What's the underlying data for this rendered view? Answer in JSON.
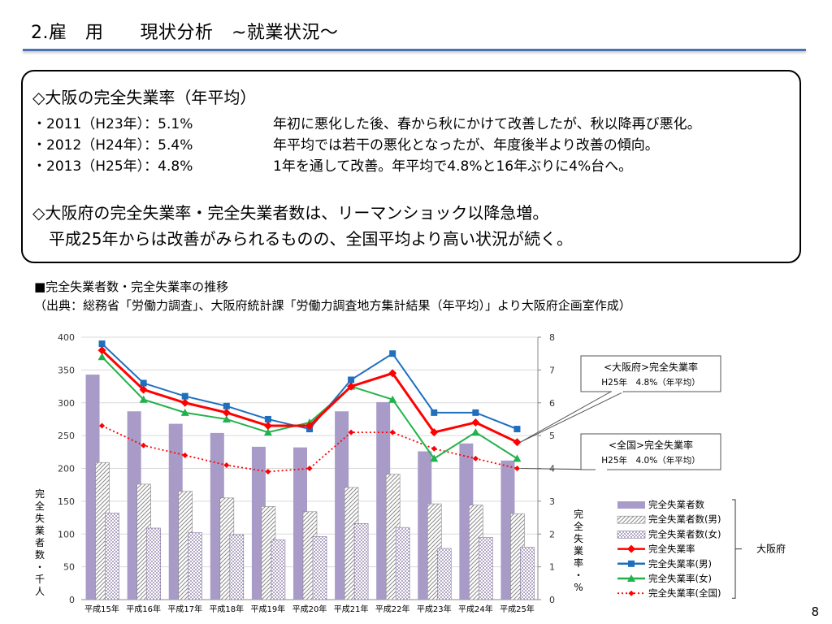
{
  "header": {
    "title": "2.雇　用　　現状分析　~就業状況～"
  },
  "summary": {
    "heading1": "◇大阪の完全失業率（年平均）",
    "bullets": [
      {
        "label": "・2011（H23年）：5.1%",
        "text": "年初に悪化した後、春から秋にかけて改善したが、秋以降再び悪化。"
      },
      {
        "label": "・2012（H24年）：5.4%",
        "text": "年平均では若干の悪化となったが、年度後半より改善の傾向。"
      },
      {
        "label": "・2013（H25年）：4.8%",
        "text": "1年を通して改善。年平均で4.8%と16年ぶりに4%台へ。"
      }
    ],
    "heading2_line1": "◇大阪府の完全失業率・完全失業者数は、リーマンショック以降急増。",
    "heading2_line2": "　平成25年からは改善がみられるものの、全国平均より高い状況が続く。"
  },
  "source": {
    "title": "■完全失業者数・完全失業率の推移",
    "citation": "（出典：総務省「労働力調査」、大阪府統計課「労働力調査地方集計結果（年平均）」より大阪府企画室作成）"
  },
  "page_number": "8",
  "chart_data": {
    "type": "bar",
    "categories": [
      "平成15年",
      "平成16年",
      "平成17年",
      "平成18年",
      "平成19年",
      "平成20年",
      "平成21年",
      "平成22年",
      "平成23年",
      "平成24年",
      "平成25年"
    ],
    "y_left": {
      "label": "完全失業者数・千人",
      "ticks": [
        0,
        50,
        100,
        150,
        200,
        250,
        300,
        350,
        400
      ],
      "ylim": [
        0,
        400
      ]
    },
    "y_right": {
      "label": "完全失業率・%",
      "ticks": [
        0,
        1,
        2,
        3,
        4,
        5,
        6,
        7,
        8
      ],
      "ylim": [
        0,
        8
      ]
    },
    "bar_series": [
      {
        "name": "完全失業者数",
        "values": [
          343,
          287,
          268,
          254,
          233,
          232,
          287,
          301,
          226,
          238,
          212
        ],
        "color": "#a99bc8",
        "pattern": "solid"
      },
      {
        "name": "完全失業者数(男)",
        "values": [
          209,
          176,
          165,
          155,
          142,
          134,
          171,
          191,
          146,
          144,
          131
        ],
        "color": "#8a8a8a",
        "pattern": "diagonal"
      },
      {
        "name": "完全失業者数(女)",
        "values": [
          132,
          109,
          102,
          99,
          91,
          96,
          116,
          110,
          78,
          95,
          80
        ],
        "color": "#8a7aa8",
        "pattern": "dots"
      }
    ],
    "line_series": [
      {
        "name": "完全失業率",
        "values": [
          7.6,
          6.4,
          6.0,
          5.7,
          5.3,
          5.3,
          6.5,
          6.9,
          5.1,
          5.4,
          4.8
        ],
        "color": "#ff0000",
        "marker": "diamond",
        "dash": "solid"
      },
      {
        "name": "完全失業率(男)",
        "values": [
          7.8,
          6.6,
          6.2,
          5.9,
          5.5,
          5.2,
          6.7,
          7.5,
          5.7,
          5.7,
          5.2
        ],
        "color": "#1f6fbf",
        "marker": "square",
        "dash": "solid"
      },
      {
        "name": "完全失業率(女)",
        "values": [
          7.4,
          6.1,
          5.7,
          5.5,
          5.1,
          5.4,
          6.5,
          6.1,
          4.3,
          5.1,
          4.3
        ],
        "color": "#22b24c",
        "marker": "triangle",
        "dash": "solid"
      },
      {
        "name": "完全失業率(全国)",
        "values": [
          5.3,
          4.7,
          4.4,
          4.1,
          3.9,
          4.0,
          5.1,
          5.1,
          4.6,
          4.3,
          4.0
        ],
        "color": "#ff0000",
        "marker": "diamond-small",
        "dash": "dotted"
      }
    ],
    "callouts": [
      {
        "line1": "<大阪府>完全失業率",
        "line2": "H25年　4.8%（年平均）",
        "series": "完全失業率"
      },
      {
        "line1": "<全国>完全失業率",
        "line2": "H25年　4.0%（年平均）",
        "series": "完全失業率(全国)"
      }
    ],
    "legend": {
      "group_label": "大阪府",
      "position": "bottom-right"
    }
  }
}
